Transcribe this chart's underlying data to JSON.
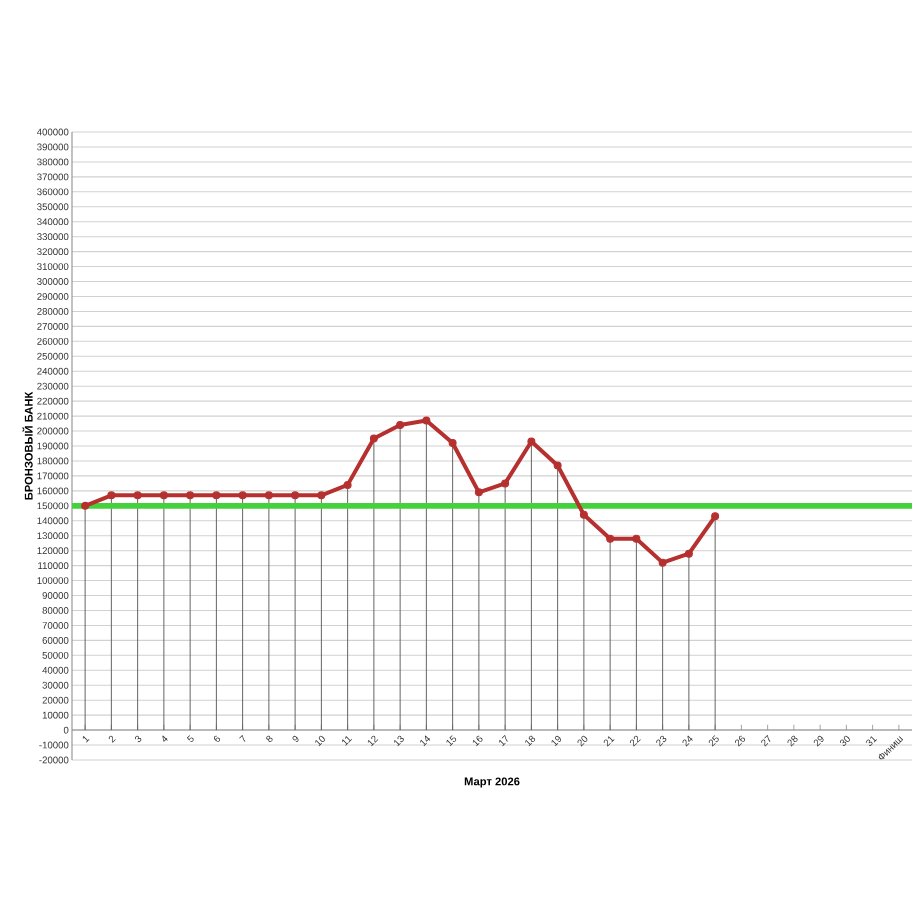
{
  "chart_data": {
    "type": "line",
    "xlabel": "Март 2026",
    "ylabel": "БРОНЗОВЫЙ БАНК",
    "categories": [
      "1",
      "2",
      "3",
      "4",
      "5",
      "6",
      "7",
      "8",
      "9",
      "10",
      "11",
      "12",
      "13",
      "14",
      "15",
      "16",
      "17",
      "18",
      "19",
      "20",
      "21",
      "22",
      "23",
      "24",
      "25",
      "26",
      "27",
      "28",
      "29",
      "30",
      "31",
      "Финиш"
    ],
    "series": [
      {
        "color": "#b5302e",
        "values": [
          150000,
          157000,
          157000,
          157000,
          157000,
          157000,
          157000,
          157000,
          157000,
          157000,
          164000,
          195000,
          204000,
          207000,
          192000,
          159000,
          165000,
          193000,
          177000,
          144000,
          128000,
          128000,
          112000,
          118000,
          143000,
          null,
          null,
          null,
          null,
          null,
          null,
          null
        ]
      },
      {
        "type": "lollipop",
        "color": "#b5302e",
        "values": [
          150000,
          157000,
          157000,
          157000,
          157000,
          157000,
          157000,
          157000,
          157000,
          157000,
          164000,
          195000,
          204000,
          207000,
          192000,
          159000,
          165000,
          193000,
          177000,
          144000,
          128000,
          128000,
          112000,
          118000,
          143000,
          null,
          null,
          null,
          null,
          null,
          null,
          null
        ]
      }
    ],
    "ylim": [
      -20000,
      400000
    ],
    "yticks": [
      -20000,
      -10000,
      0,
      10000,
      20000,
      30000,
      40000,
      50000,
      60000,
      70000,
      80000,
      90000,
      100000,
      110000,
      120000,
      130000,
      140000,
      150000,
      160000,
      170000,
      180000,
      190000,
      200000,
      210000,
      220000,
      230000,
      240000,
      250000,
      260000,
      270000,
      280000,
      290000,
      300000,
      310000,
      320000,
      330000,
      340000,
      350000,
      360000,
      370000,
      380000,
      390000,
      400000
    ],
    "grid": "y",
    "line_style": "solid",
    "ref_lines": [
      {
        "axis": "y",
        "value": 150000,
        "color": "#44d13d"
      }
    ]
  }
}
